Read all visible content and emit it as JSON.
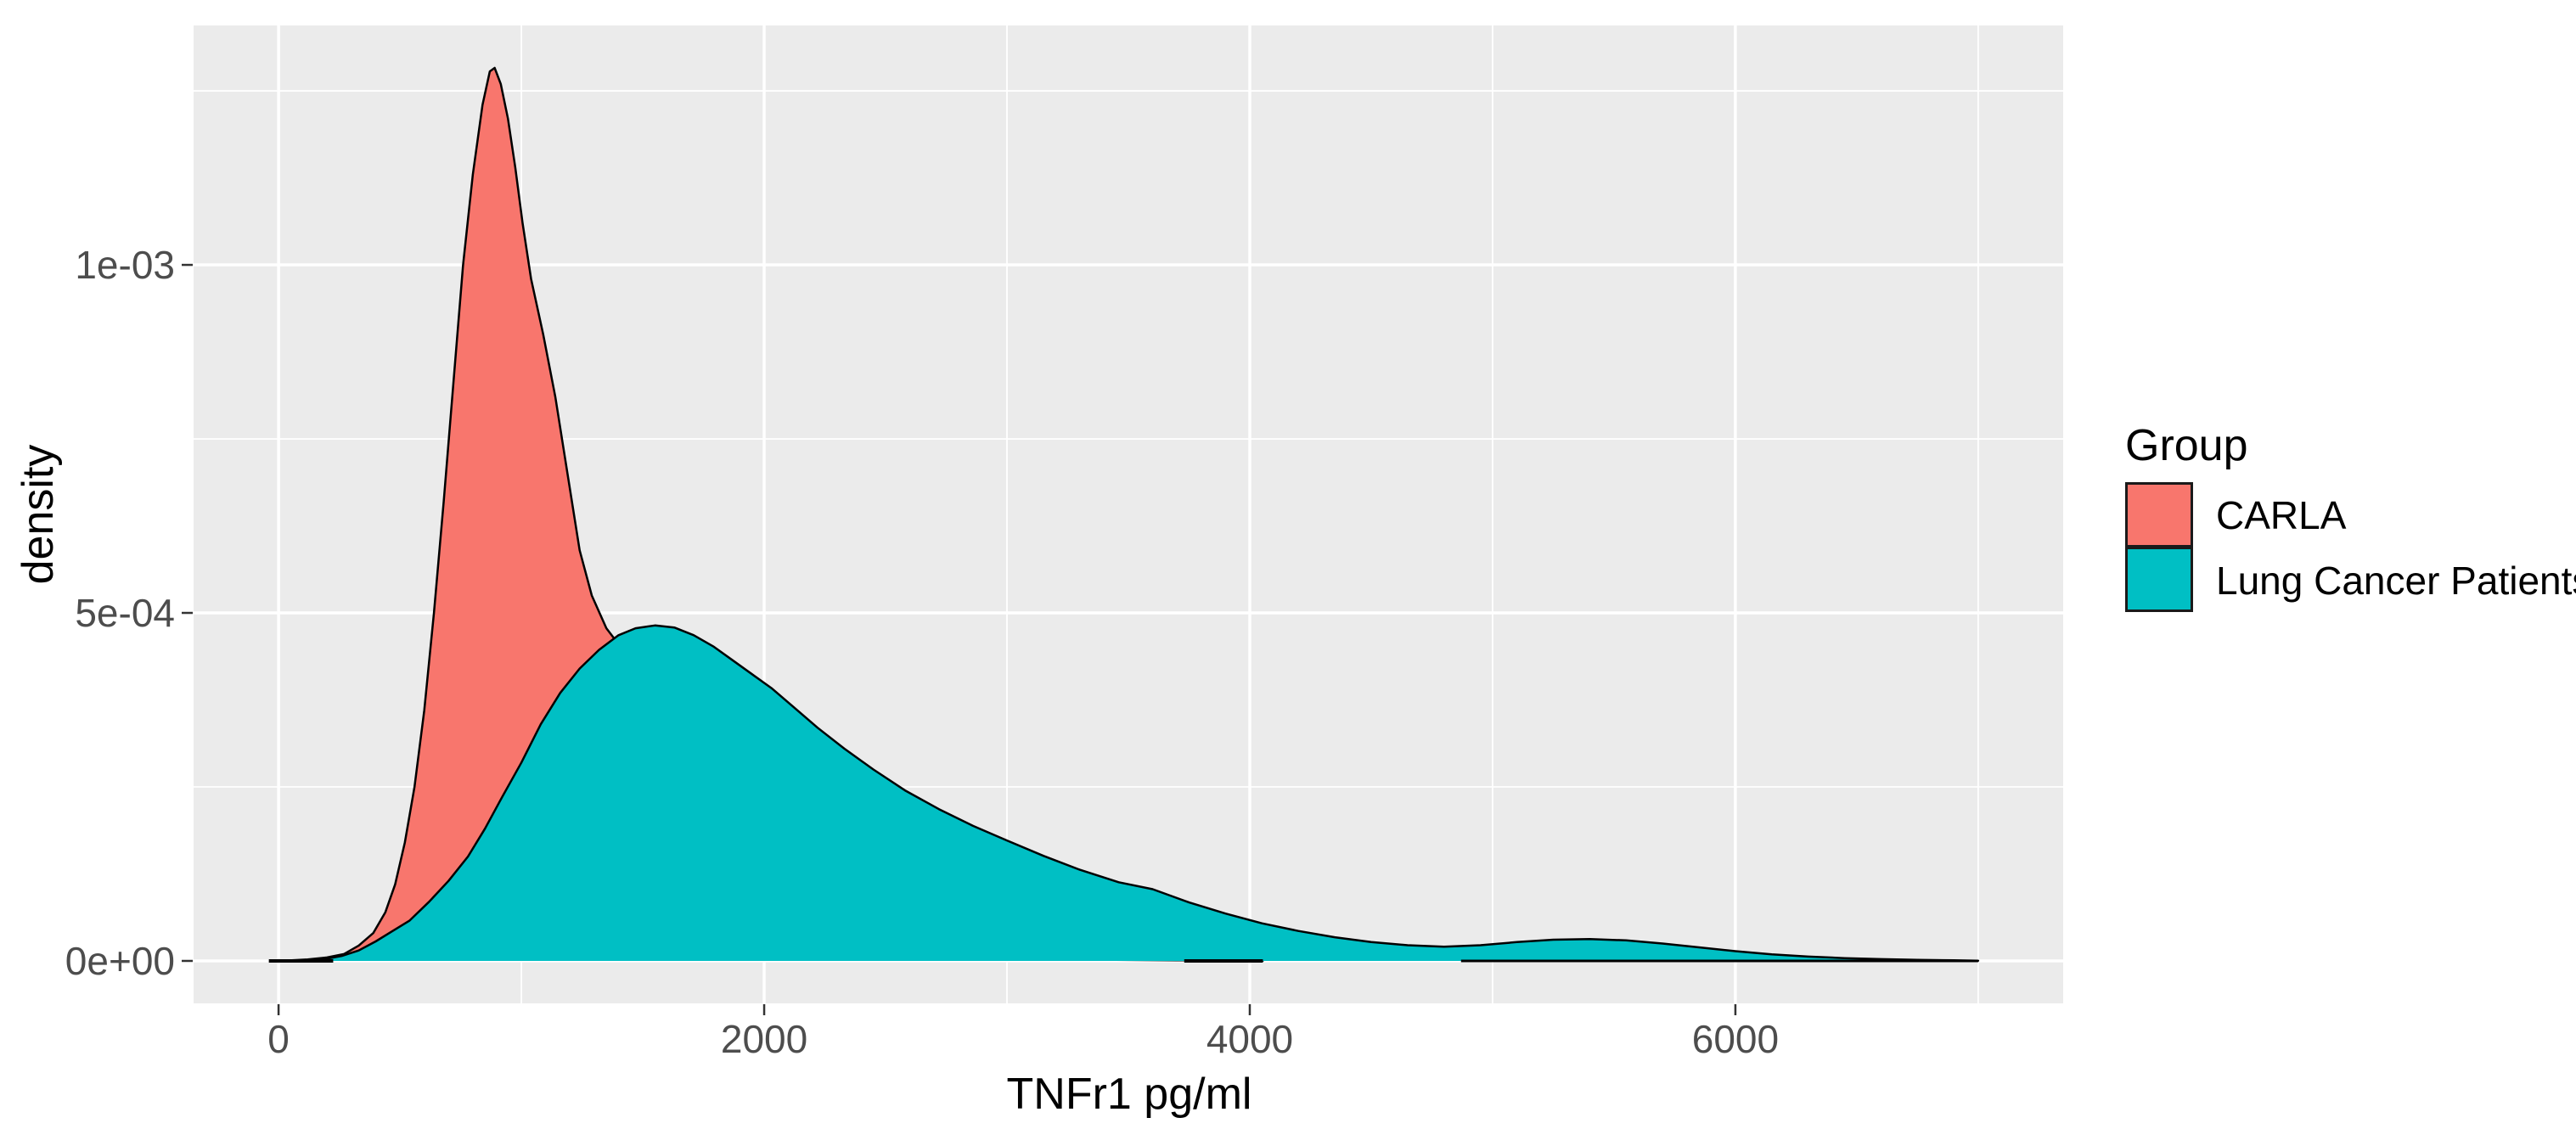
{
  "figure": {
    "background": "#ffffff"
  },
  "axes": {
    "x_title": "TNFr1 pg/ml",
    "y_title": "density"
  },
  "legend": {
    "title": "Group",
    "entries": [
      {
        "label": "CARLA",
        "color": "#F8766D"
      },
      {
        "label": "Lung Cancer Patients",
        "color": "#00BFC4"
      }
    ]
  },
  "chart_data": {
    "type": "area",
    "subtype": "density",
    "title": "",
    "xlabel": "TNFr1 pg/ml",
    "ylabel": "density",
    "xlim": [
      -350,
      7350
    ],
    "ylim": [
      -6.1e-05,
      0.001344
    ],
    "x_major_ticks": [
      0,
      2000,
      4000,
      6000
    ],
    "x_tick_labels": [
      "0",
      "2000",
      "4000",
      "6000"
    ],
    "x_minor_ticks": [
      1000,
      3000,
      5000,
      7000
    ],
    "y_major_ticks": [
      0,
      0.0005,
      0.001
    ],
    "y_tick_labels": [
      "0e+00",
      "5e-04",
      "1e-03"
    ],
    "y_minor_ticks": [
      0.00025,
      0.00075,
      0.00125
    ],
    "grid": true,
    "panel_background": "#EBEBEB",
    "gridline_color": "#FFFFFF",
    "tick_color": "#333333",
    "tick_label_color": "#4d4d4d",
    "outline_color": "#000000",
    "legend_position": "right",
    "series": [
      {
        "name": "CARLA",
        "fill": "#F8766D",
        "peak": {
          "x": 890,
          "density": 0.001283
        },
        "points": [
          [
            30,
            5e-07
          ],
          [
            120,
            2e-06
          ],
          [
            200,
            5e-06
          ],
          [
            270,
            1e-05
          ],
          [
            330,
            2.2e-05
          ],
          [
            390,
            4e-05
          ],
          [
            440,
            7e-05
          ],
          [
            480,
            0.00011
          ],
          [
            520,
            0.00017
          ],
          [
            560,
            0.00025
          ],
          [
            600,
            0.00036
          ],
          [
            640,
            0.0005
          ],
          [
            680,
            0.00066
          ],
          [
            720,
            0.00083
          ],
          [
            760,
            0.001
          ],
          [
            800,
            0.00113
          ],
          [
            840,
            0.00123
          ],
          [
            870,
            0.001278
          ],
          [
            890,
            0.001283
          ],
          [
            915,
            0.00126
          ],
          [
            945,
            0.00121
          ],
          [
            975,
            0.00114
          ],
          [
            1005,
            0.00106
          ],
          [
            1040,
            0.00098
          ],
          [
            1090,
            0.0009
          ],
          [
            1140,
            0.00081
          ],
          [
            1190,
            0.0007
          ],
          [
            1240,
            0.00059
          ],
          [
            1290,
            0.000525
          ],
          [
            1350,
            0.000478
          ],
          [
            1400,
            0.000455
          ],
          [
            1460,
            0.00041
          ],
          [
            1530,
            0.00034
          ],
          [
            1610,
            0.00027
          ],
          [
            1700,
            0.000205
          ],
          [
            1790,
            0.00015
          ],
          [
            1890,
            0.000105
          ],
          [
            2000,
            7.2e-05
          ],
          [
            2120,
            4.8e-05
          ],
          [
            2250,
            3.1e-05
          ],
          [
            2400,
            1.9e-05
          ],
          [
            2570,
            1.1e-05
          ],
          [
            2760,
            6.5e-06
          ],
          [
            2970,
            4e-06
          ],
          [
            3200,
            2.5e-06
          ],
          [
            3450,
            1.5e-06
          ],
          [
            3700,
            1e-06
          ],
          [
            3900,
            6e-07
          ],
          [
            4054,
            2e-07
          ]
        ]
      },
      {
        "name": "Lung Cancer Patients",
        "fill": "#00BFC4",
        "peak": {
          "x": 1550,
          "density": 0.000482
        },
        "points": [
          [
            100,
            3e-07
          ],
          [
            180,
            2e-06
          ],
          [
            260,
            7e-06
          ],
          [
            330,
            1.5e-05
          ],
          [
            400,
            2.8e-05
          ],
          [
            470,
            4.3e-05
          ],
          [
            540,
            5.8e-05
          ],
          [
            620,
            8.5e-05
          ],
          [
            700,
            0.000115
          ],
          [
            780,
            0.00015
          ],
          [
            850,
            0.00019
          ],
          [
            920,
            0.000235
          ],
          [
            1000,
            0.000285
          ],
          [
            1080,
            0.00034
          ],
          [
            1160,
            0.000385
          ],
          [
            1240,
            0.00042
          ],
          [
            1320,
            0.000447
          ],
          [
            1400,
            0.000468
          ],
          [
            1470,
            0.000478
          ],
          [
            1550,
            0.000482
          ],
          [
            1630,
            0.000479
          ],
          [
            1710,
            0.000468
          ],
          [
            1790,
            0.000452
          ],
          [
            1870,
            0.000432
          ],
          [
            1950,
            0.000412
          ],
          [
            2030,
            0.000392
          ],
          [
            2120,
            0.000365
          ],
          [
            2220,
            0.000335
          ],
          [
            2330,
            0.000305
          ],
          [
            2450,
            0.000275
          ],
          [
            2580,
            0.000245
          ],
          [
            2720,
            0.000218
          ],
          [
            2860,
            0.000194
          ],
          [
            3000,
            0.000173
          ],
          [
            3150,
            0.000151
          ],
          [
            3300,
            0.000131
          ],
          [
            3460,
            0.000113
          ],
          [
            3600,
            0.000103
          ],
          [
            3750,
            8.4e-05
          ],
          [
            3900,
            6.8e-05
          ],
          [
            4050,
            5.4e-05
          ],
          [
            4200,
            4.3e-05
          ],
          [
            4350,
            3.4e-05
          ],
          [
            4500,
            2.7e-05
          ],
          [
            4650,
            2.25e-05
          ],
          [
            4800,
            2.05e-05
          ],
          [
            4950,
            2.25e-05
          ],
          [
            5100,
            2.7e-05
          ],
          [
            5250,
            3.05e-05
          ],
          [
            5400,
            3.15e-05
          ],
          [
            5550,
            2.95e-05
          ],
          [
            5700,
            2.5e-05
          ],
          [
            5850,
            1.95e-05
          ],
          [
            6000,
            1.4e-05
          ],
          [
            6150,
            9.5e-06
          ],
          [
            6300,
            6.2e-06
          ],
          [
            6450,
            4e-06
          ],
          [
            6600,
            2.6e-06
          ],
          [
            6750,
            1.6e-06
          ],
          [
            6900,
            8e-07
          ],
          [
            7000,
            4e-07
          ]
        ]
      }
    ],
    "baseline_marks": [
      {
        "x1": -40,
        "x2": 225,
        "width": 4
      },
      {
        "x1": 3730,
        "x2": 4054,
        "width": 4
      },
      {
        "x1": 4870,
        "x2": 7000,
        "width": 3
      }
    ]
  }
}
